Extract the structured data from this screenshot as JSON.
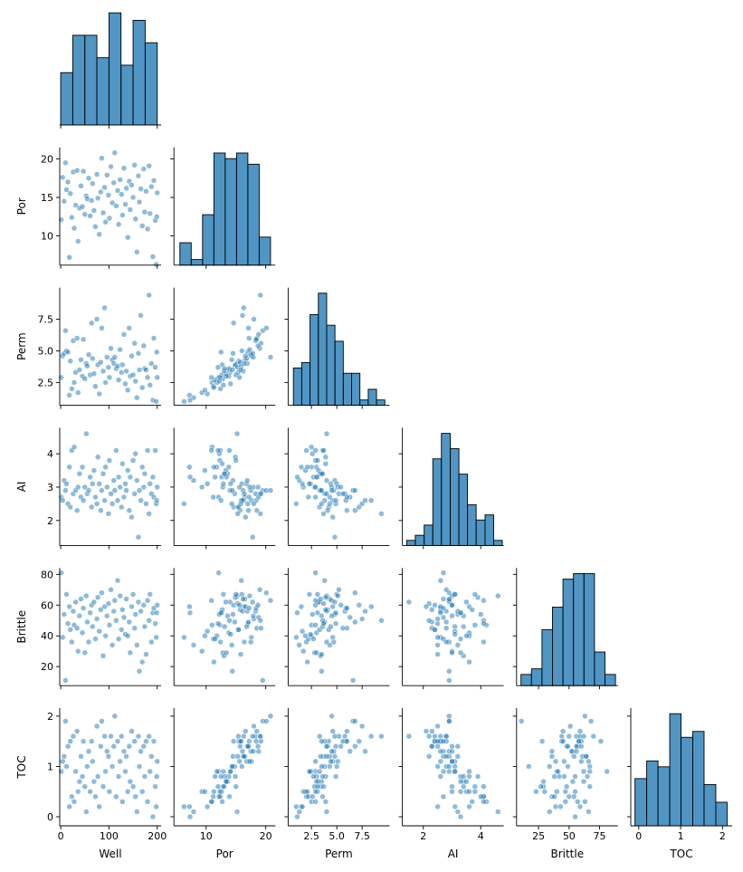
{
  "chart_data": {
    "type": "pairplot",
    "corner": true,
    "color": "#1f77b4",
    "variables": [
      {
        "name": "Well",
        "values": [
          1,
          4,
          7,
          10,
          12,
          15,
          18,
          20,
          23,
          26,
          28,
          31,
          34,
          36,
          39,
          42,
          45,
          47,
          50,
          53,
          55,
          58,
          61,
          64,
          66,
          69,
          72,
          75,
          77,
          80,
          83,
          85,
          88,
          91,
          93,
          96,
          99,
          101,
          104,
          107,
          110,
          112,
          115,
          118,
          120,
          123,
          126,
          128,
          131,
          134,
          136,
          139,
          142,
          144,
          147,
          150,
          153,
          155,
          158,
          161,
          163,
          166,
          169,
          172,
          174,
          177,
          180,
          183,
          185,
          188,
          191,
          193,
          196,
          198,
          200,
          199
        ],
        "xlim": [
          -2,
          208
        ],
        "xticks": [
          0,
          100,
          200
        ],
        "hist": {
          "bins": [
            0,
            25,
            50,
            75,
            100,
            125,
            150,
            175,
            200
          ],
          "counts": [
            7,
            12,
            12,
            9,
            15,
            8,
            14,
            11
          ]
        }
      },
      {
        "name": "Por",
        "values": [
          12.1,
          17.6,
          14.5,
          19.5,
          16.0,
          17.0,
          7.2,
          15.5,
          12.4,
          18.3,
          11.0,
          14.0,
          18.5,
          9.3,
          13.6,
          16.5,
          13.8,
          18.4,
          12.8,
          15.2,
          14.8,
          17.5,
          12.6,
          14.6,
          16.8,
          13.3,
          11.2,
          18.0,
          14.9,
          10.2,
          15.7,
          20.1,
          13.0,
          16.3,
          11.8,
          17.9,
          15.3,
          12.3,
          19.0,
          14.3,
          16.9,
          20.8,
          13.9,
          15.9,
          11.5,
          17.3,
          15.4,
          12.7,
          18.8,
          14.1,
          16.2,
          9.8,
          17.1,
          13.4,
          16.6,
          15.0,
          19.2,
          12.2,
          7.9,
          17.8,
          14.4,
          16.1,
          11.3,
          18.7,
          13.1,
          15.8,
          10.9,
          19.1,
          12.9,
          16.4,
          7.3,
          17.2,
          12.0,
          6.3,
          15.6,
          12.5
        ],
        "xlim": [
          4.6,
          21.6
        ],
        "ylim": [
          6.2,
          21.5
        ],
        "xticks": [
          10,
          20
        ],
        "yticks": [
          10,
          15,
          20
        ],
        "hist": {
          "bins": [
            5.6,
            7.5,
            9.4,
            11.3,
            13.2,
            15.1,
            17.0,
            18.9,
            20.8
          ],
          "counts": [
            4,
            1,
            9,
            20,
            19,
            20,
            18,
            5
          ]
        }
      },
      {
        "name": "Perm",
        "values": [
          2.9,
          4.6,
          4.8,
          6.6,
          5.0,
          4.9,
          1.5,
          4.2,
          2.0,
          5.8,
          2.5,
          3.3,
          6.0,
          1.7,
          3.5,
          4.3,
          3.0,
          5.9,
          2.8,
          4.0,
          3.8,
          4.7,
          3.1,
          7.2,
          4.4,
          3.2,
          2.2,
          7.5,
          3.9,
          1.6,
          4.1,
          6.8,
          3.4,
          8.4,
          2.5,
          4.5,
          3.7,
          2.9,
          5.2,
          4.3,
          4.0,
          4.5,
          3.6,
          3.8,
          2.7,
          5.1,
          3.3,
          3.9,
          6.3,
          2.4,
          3.4,
          1.9,
          6.8,
          3.0,
          4.6,
          3.1,
          5.6,
          2.6,
          1.3,
          4.8,
          3.5,
          7.8,
          2.1,
          5.4,
          3.6,
          3.5,
          2.9,
          9.4,
          2.3,
          4.0,
          1.1,
          6.0,
          3.7,
          1.0,
          2.9,
          4.9
        ],
        "xlim": [
          0.2,
          10.2
        ],
        "ylim": [
          0.7,
          10
        ],
        "xticks": [
          2.5,
          {
            "value": 5,
            "label": "5.0"
          },
          7.5
        ],
        "yticks": [
          2.5,
          {
            "value": 5,
            "label": "5.0"
          },
          7.5
        ],
        "hist": {
          "bins": [
            0.72,
            1.54,
            2.36,
            3.18,
            4.0,
            4.82,
            5.64,
            6.46,
            7.28,
            8.1,
            8.92,
            9.74
          ],
          "counts": [
            7,
            8,
            17,
            21,
            15,
            12,
            6,
            6,
            1,
            3,
            1
          ]
        }
      },
      {
        "name": "AI",
        "values": [
          2.7,
          2.6,
          3.2,
          2.9,
          3.1,
          2.5,
          3.6,
          2.4,
          4.1,
          2.8,
          4.2,
          2.9,
          2.3,
          3.0,
          3.4,
          2.7,
          3.6,
          2.6,
          3.0,
          4.6,
          2.8,
          2.9,
          3.3,
          2.4,
          3.1,
          3.5,
          2.7,
          2.5,
          3.9,
          3.1,
          2.3,
          2.9,
          3.4,
          2.6,
          3.6,
          3.0,
          2.2,
          3.8,
          2.8,
          2.5,
          3.2,
          2.9,
          4.1,
          2.6,
          3.3,
          3.0,
          2.4,
          3.7,
          2.7,
          3.1,
          2.9,
          3.5,
          2.3,
          3.3,
          2.1,
          3.8,
          2.8,
          4.0,
          3.2,
          1.5,
          2.9,
          2.6,
          3.6,
          3.0,
          3.4,
          2.5,
          4.1,
          2.2,
          3.1,
          2.8,
          3.3,
          2.7,
          4.1,
          2.5,
          3.0,
          2.6
        ],
        "xlim": [
          1.27,
          4.8
        ],
        "ylim": [
          1.25,
          4.78
        ],
        "xticks": [
          2,
          4
        ],
        "yticks": [
          2,
          3,
          4
        ],
        "hist": {
          "bins": [
            1.42,
            1.72,
            2.03,
            2.33,
            2.63,
            2.94,
            3.24,
            3.54,
            3.84,
            4.15,
            4.45,
            4.75
          ],
          "counts": [
            1,
            2,
            4,
            17,
            22,
            19,
            14,
            8,
            5,
            6,
            1
          ]
        }
      },
      {
        "name": "Brittle",
        "values": [
          81,
          39,
          54,
          11,
          67,
          48,
          59,
          44,
          36,
          56,
          47,
          62,
          45,
          30,
          53,
          64,
          42,
          58,
          29,
          66,
          49,
          36,
          55,
          60,
          46,
          62,
          38,
          51,
          65,
          43,
          57,
          68,
          27,
          59,
          40,
          53,
          61,
          47,
          70,
          34,
          56,
          63,
          50,
          76,
          38,
          66,
          44,
          57,
          52,
          41,
          64,
          40,
          49,
          29,
          59,
          67,
          45,
          54,
          34,
          62,
          17,
          56,
          23,
          60,
          46,
          28,
          63,
          50,
          67,
          36,
          55,
          58,
          48,
          39,
          60,
          55
        ],
        "xlim": [
          7,
          90
        ],
        "ylim": [
          7.6,
          84.2
        ],
        "xticks": [
          25,
          50,
          75
        ],
        "yticks": [
          20,
          40,
          60,
          80
        ],
        "hist": {
          "bins": [
            10.6,
            19.2,
            27.8,
            36.4,
            45.0,
            53.6,
            62.2,
            70.8,
            79.4,
            88.0
          ],
          "counts": [
            2,
            3,
            10,
            14,
            19,
            20,
            20,
            6,
            2
          ]
        }
      },
      {
        "name": "TOC",
        "values": [
          0.9,
          1.1,
          1.2,
          1.9,
          1.0,
          1.4,
          0.2,
          1.5,
          0.4,
          1.6,
          0.3,
          0.9,
          1.7,
          0.5,
          0.7,
          1.2,
          0.8,
          1.5,
          0.6,
          0.1,
          1.0,
          1.3,
          0.5,
          1.5,
          1.1,
          0.7,
          0.4,
          1.8,
          0.8,
          0.2,
          1.4,
          1.9,
          0.6,
          1.6,
          0.9,
          1.3,
          1.2,
          0.5,
          1.6,
          1.0,
          1.4,
          2.0,
          0.4,
          1.5,
          0.8,
          1.1,
          1.6,
          0.3,
          1.3,
          0.9,
          1.2,
          0.5,
          1.4,
          0.7,
          1.7,
          0.6,
          1.5,
          0.4,
          0.1,
          1.6,
          1.0,
          1.3,
          0.5,
          1.4,
          0.8,
          1.5,
          0.3,
          1.6,
          0.9,
          1.2,
          0.0,
          1.5,
          0.6,
          0.2,
          1.1,
          0.8
        ],
        "xlim": [
          -0.19,
          2.23
        ],
        "ylim": [
          -0.18,
          2.16
        ],
        "xticks": [
          0,
          1,
          2
        ],
        "yticks": [
          0,
          1,
          2
        ],
        "hist": {
          "bins": [
            -0.09,
            0.19,
            0.46,
            0.74,
            1.01,
            1.29,
            1.56,
            1.84,
            2.11
          ],
          "counts": [
            8,
            11,
            10,
            19,
            15,
            16,
            7,
            4
          ]
        }
      }
    ]
  }
}
